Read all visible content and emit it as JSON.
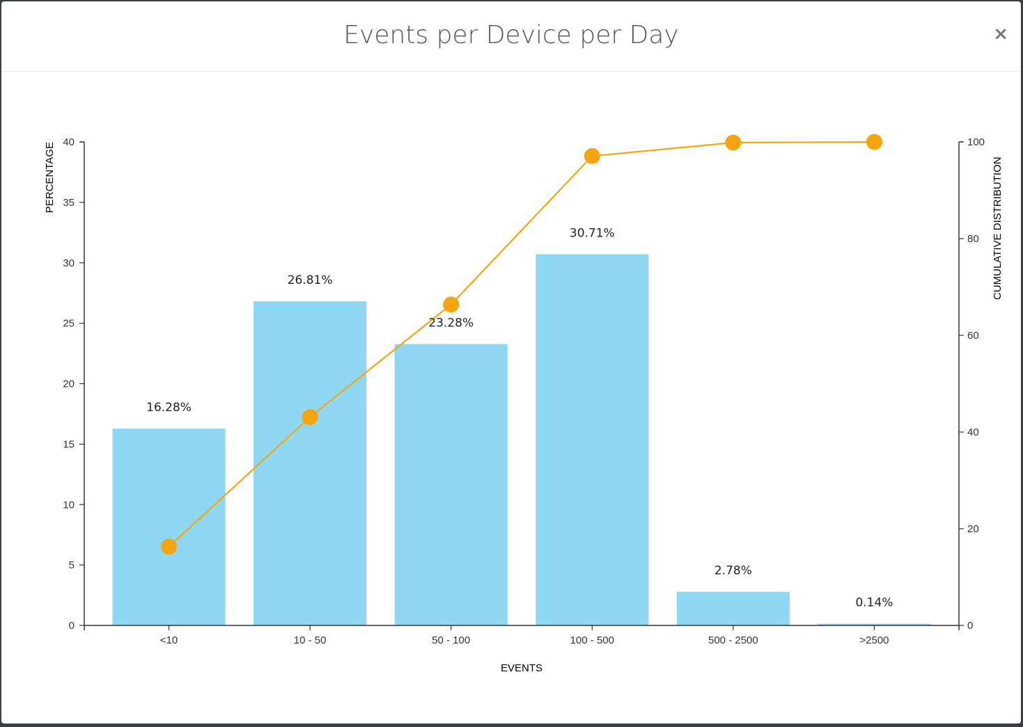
{
  "modal": {
    "title": "Events per Device per Day",
    "close_label": "×"
  },
  "colors": {
    "bar": "#8fd8f4",
    "line": "#f7a50f",
    "axis": "#333333"
  },
  "chart_data": {
    "type": "bar",
    "title": "Events per Device per Day",
    "xlabel": "EVENTS",
    "ylabel": "PERCENTAGE",
    "y2label": "CUMULATIVE DISTRIBUTION",
    "categories": [
      "<10",
      "10 - 50",
      "50 - 100",
      "100 - 500",
      "500 - 2500",
      ">2500"
    ],
    "ylim": [
      0,
      40
    ],
    "y_ticks": [
      0,
      5,
      10,
      15,
      20,
      25,
      30,
      35,
      40
    ],
    "y2lim": [
      0,
      100
    ],
    "y2_ticks": [
      0,
      20,
      40,
      60,
      80,
      100
    ],
    "grid": false,
    "series": [
      {
        "type": "bar",
        "axis": "left",
        "values": [
          16.28,
          26.81,
          23.28,
          30.71,
          2.78,
          0.14
        ],
        "labels": [
          "16.28%",
          "26.81%",
          "23.28%",
          "30.71%",
          "2.78%",
          "0.14%"
        ]
      },
      {
        "type": "line",
        "axis": "right",
        "values": [
          16.28,
          43.09,
          66.37,
          97.08,
          99.86,
          100
        ]
      }
    ]
  }
}
